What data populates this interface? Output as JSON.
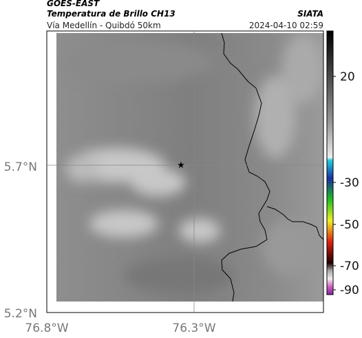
{
  "header": {
    "satellite": "GOES-EAST",
    "title": "Temperatura de Brillo CH13",
    "subtitle": "Vía Medellín - Quibdó 50km",
    "source": "SIATA",
    "datetime": "2024-04-10 02:59"
  },
  "axes": {
    "y_labels": [
      "5.7°N",
      "5.2°N"
    ],
    "x_labels": [
      "76.8°W",
      "76.3°W"
    ]
  },
  "colorbar": {
    "ticks": [
      20,
      -30,
      -50,
      -70,
      -90
    ]
  }
}
